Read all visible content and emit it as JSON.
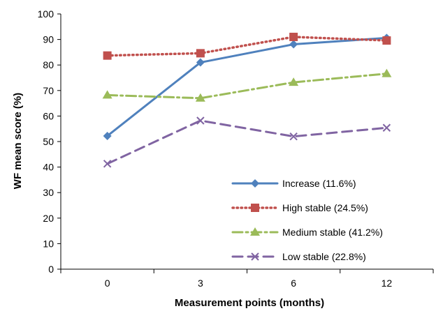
{
  "chart_data": {
    "type": "line",
    "categories": [
      "0",
      "3",
      "6",
      "12"
    ],
    "xlabel": "Measurement points (months)",
    "ylabel": "WF mean score (%)",
    "ylim": [
      0,
      100
    ],
    "yticks": [
      "0",
      "10",
      "20",
      "30",
      "40",
      "50",
      "60",
      "70",
      "80",
      "90",
      "100"
    ],
    "grid": false,
    "legend_position": "bottom-right inside plot",
    "series": [
      {
        "name": "Increase (11.6%)",
        "values": [
          52.2,
          81.0,
          88.1,
          90.6
        ],
        "color": "#4f81bd",
        "dash": "solid",
        "marker": "diamond"
      },
      {
        "name": "High stable (24.5%)",
        "values": [
          83.7,
          84.6,
          91.0,
          89.6
        ],
        "color": "#c0504d",
        "dash": "dotted",
        "marker": "square"
      },
      {
        "name": "Medium stable (41.2%)",
        "values": [
          68.2,
          67.0,
          73.2,
          76.6
        ],
        "color": "#9bbb59",
        "dash": "dashdot",
        "marker": "triangle"
      },
      {
        "name": "Low stable (22.8%)",
        "values": [
          41.3,
          58.2,
          52.0,
          55.4
        ],
        "color": "#8064a2",
        "dash": "dashed",
        "marker": "x"
      }
    ]
  }
}
